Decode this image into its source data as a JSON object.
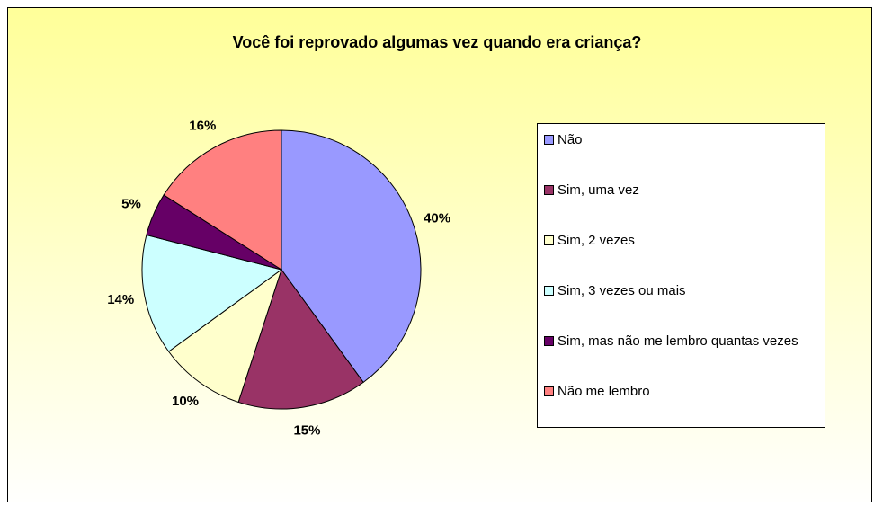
{
  "chart_data": {
    "type": "pie",
    "title": "Você foi reprovado algumas vez quando era criança?",
    "categories": [
      "Não",
      "Sim, uma vez",
      "Sim, 2 vezes",
      "Sim, 3 vezes ou mais",
      "Sim, mas não me lembro quantas vezes",
      "Não me lembro"
    ],
    "values": [
      40,
      15,
      10,
      14,
      5,
      16
    ],
    "value_labels": [
      "40%",
      "15%",
      "10%",
      "14%",
      "5%",
      "16%"
    ],
    "colors": [
      "#9999ff",
      "#993366",
      "#ffffcc",
      "#ccffff",
      "#660066",
      "#ff8080"
    ],
    "legend": "right"
  }
}
